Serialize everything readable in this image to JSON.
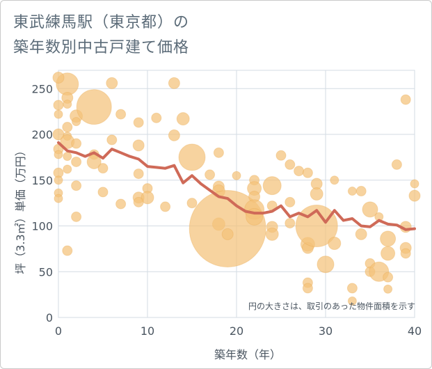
{
  "title": {
    "line1": "東武練馬駅（東京都）の",
    "line2": "築年数別中古戸建て価格"
  },
  "colors": {
    "bubble": "#f4c27a",
    "trend": "#cf6a58",
    "grid": "#d3dbe3",
    "text": "#4a5560"
  },
  "chart_data": {
    "type": "scatter",
    "xlabel": "築年数（年）",
    "ylabel": "坪（3.3㎡）単価（万円）",
    "xlim": [
      0,
      40
    ],
    "ylim": [
      0,
      270
    ],
    "x_ticks": [
      "0",
      "10",
      "20",
      "30",
      "40"
    ],
    "y_ticks": [
      "0",
      "50",
      "100",
      "150",
      "200",
      "250"
    ],
    "grid": true,
    "annotation": "円の大きさは、取引のあった物件面積を示す",
    "bubbles": [
      {
        "x": 1,
        "y": 255,
        "r": 16
      },
      {
        "x": 0,
        "y": 262,
        "r": 8
      },
      {
        "x": 1,
        "y": 240,
        "r": 8
      },
      {
        "x": 1,
        "y": 233,
        "r": 6
      },
      {
        "x": 0,
        "y": 232,
        "r": 7
      },
      {
        "x": 0,
        "y": 222,
        "r": 6
      },
      {
        "x": 2,
        "y": 220,
        "r": 9
      },
      {
        "x": 2,
        "y": 214,
        "r": 6
      },
      {
        "x": 1,
        "y": 208,
        "r": 7
      },
      {
        "x": 0,
        "y": 200,
        "r": 8
      },
      {
        "x": 1,
        "y": 198,
        "r": 6
      },
      {
        "x": 1,
        "y": 192,
        "r": 10
      },
      {
        "x": 2,
        "y": 190,
        "r": 7
      },
      {
        "x": 0,
        "y": 184,
        "r": 7
      },
      {
        "x": 0,
        "y": 178,
        "r": 6
      },
      {
        "x": 1,
        "y": 176,
        "r": 6
      },
      {
        "x": 2,
        "y": 170,
        "r": 7
      },
      {
        "x": 0,
        "y": 158,
        "r": 7
      },
      {
        "x": 0,
        "y": 150,
        "r": 6
      },
      {
        "x": 1,
        "y": 162,
        "r": 6
      },
      {
        "x": 0,
        "y": 136,
        "r": 6
      },
      {
        "x": 0,
        "y": 130,
        "r": 6
      },
      {
        "x": 2,
        "y": 144,
        "r": 7
      },
      {
        "x": 2,
        "y": 110,
        "r": 7
      },
      {
        "x": 1,
        "y": 73,
        "r": 7
      },
      {
        "x": 4,
        "y": 230,
        "r": 25
      },
      {
        "x": 6,
        "y": 256,
        "r": 8
      },
      {
        "x": 7,
        "y": 222,
        "r": 7
      },
      {
        "x": 6,
        "y": 194,
        "r": 7
      },
      {
        "x": 4,
        "y": 178,
        "r": 7
      },
      {
        "x": 4,
        "y": 170,
        "r": 10
      },
      {
        "x": 5,
        "y": 163,
        "r": 7
      },
      {
        "x": 5,
        "y": 137,
        "r": 7
      },
      {
        "x": 7,
        "y": 124,
        "r": 7
      },
      {
        "x": 9,
        "y": 213,
        "r": 7
      },
      {
        "x": 9,
        "y": 188,
        "r": 8
      },
      {
        "x": 9,
        "y": 157,
        "r": 7
      },
      {
        "x": 10,
        "y": 141,
        "r": 7
      },
      {
        "x": 9,
        "y": 131,
        "r": 8
      },
      {
        "x": 10,
        "y": 131,
        "r": 9
      },
      {
        "x": 9,
        "y": 126,
        "r": 7
      },
      {
        "x": 11,
        "y": 218,
        "r": 7
      },
      {
        "x": 13,
        "y": 256,
        "r": 8
      },
      {
        "x": 14,
        "y": 217,
        "r": 9
      },
      {
        "x": 13,
        "y": 199,
        "r": 8
      },
      {
        "x": 12,
        "y": 121,
        "r": 7
      },
      {
        "x": 15,
        "y": 175,
        "r": 19
      },
      {
        "x": 15,
        "y": 125,
        "r": 7
      },
      {
        "x": 17,
        "y": 156,
        "r": 7
      },
      {
        "x": 18,
        "y": 180,
        "r": 7
      },
      {
        "x": 18,
        "y": 143,
        "r": 8
      },
      {
        "x": 18,
        "y": 138,
        "r": 9
      },
      {
        "x": 18,
        "y": 102,
        "r": 9
      },
      {
        "x": 19,
        "y": 97,
        "r": 55
      },
      {
        "x": 19,
        "y": 91,
        "r": 8
      },
      {
        "x": 20,
        "y": 155,
        "r": 6
      },
      {
        "x": 22,
        "y": 150,
        "r": 7
      },
      {
        "x": 22,
        "y": 141,
        "r": 10
      },
      {
        "x": 22,
        "y": 132,
        "r": 8
      },
      {
        "x": 22,
        "y": 118,
        "r": 14
      },
      {
        "x": 22,
        "y": 110,
        "r": 12
      },
      {
        "x": 24,
        "y": 144,
        "r": 13
      },
      {
        "x": 24,
        "y": 122,
        "r": 7
      },
      {
        "x": 24,
        "y": 99,
        "r": 8
      },
      {
        "x": 24,
        "y": 91,
        "r": 9
      },
      {
        "x": 25,
        "y": 177,
        "r": 7
      },
      {
        "x": 26,
        "y": 167,
        "r": 7
      },
      {
        "x": 26,
        "y": 126,
        "r": 7
      },
      {
        "x": 26,
        "y": 103,
        "r": 7
      },
      {
        "x": 27,
        "y": 160,
        "r": 7
      },
      {
        "x": 28,
        "y": 158,
        "r": 7
      },
      {
        "x": 28,
        "y": 80,
        "r": 10
      },
      {
        "x": 28,
        "y": 76,
        "r": 8
      },
      {
        "x": 28,
        "y": 38,
        "r": 7
      },
      {
        "x": 28,
        "y": 32,
        "r": 7
      },
      {
        "x": 29,
        "y": 146,
        "r": 8
      },
      {
        "x": 29,
        "y": 135,
        "r": 9
      },
      {
        "x": 29,
        "y": 100,
        "r": 30
      },
      {
        "x": 30,
        "y": 58,
        "r": 12
      },
      {
        "x": 31,
        "y": 150,
        "r": 6
      },
      {
        "x": 31,
        "y": 81,
        "r": 9
      },
      {
        "x": 33,
        "y": 138,
        "r": 6
      },
      {
        "x": 33,
        "y": 32,
        "r": 7
      },
      {
        "x": 33,
        "y": 18,
        "r": 6
      },
      {
        "x": 34,
        "y": 138,
        "r": 7
      },
      {
        "x": 34,
        "y": 91,
        "r": 8
      },
      {
        "x": 35,
        "y": 118,
        "r": 11
      },
      {
        "x": 35,
        "y": 59,
        "r": 7
      },
      {
        "x": 35,
        "y": 50,
        "r": 7
      },
      {
        "x": 36,
        "y": 110,
        "r": 6
      },
      {
        "x": 36,
        "y": 50,
        "r": 14
      },
      {
        "x": 37,
        "y": 86,
        "r": 11
      },
      {
        "x": 37,
        "y": 70,
        "r": 10
      },
      {
        "x": 37,
        "y": 44,
        "r": 7
      },
      {
        "x": 37,
        "y": 31,
        "r": 6
      },
      {
        "x": 38,
        "y": 167,
        "r": 7
      },
      {
        "x": 39,
        "y": 238,
        "r": 7
      },
      {
        "x": 39,
        "y": 99,
        "r": 8
      },
      {
        "x": 39,
        "y": 76,
        "r": 8
      },
      {
        "x": 39,
        "y": 70,
        "r": 7
      },
      {
        "x": 40,
        "y": 146,
        "r": 6
      },
      {
        "x": 40,
        "y": 133,
        "r": 8
      }
    ],
    "trend": {
      "x": [
        0,
        1,
        2,
        3,
        4,
        5,
        6,
        7,
        8,
        9,
        10,
        11,
        12,
        13,
        14,
        15,
        16,
        17,
        18,
        19,
        20,
        21,
        22,
        23,
        24,
        25,
        26,
        27,
        28,
        29,
        30,
        31,
        32,
        33,
        34,
        35,
        36,
        37,
        38,
        39,
        40
      ],
      "y": [
        191,
        182,
        180,
        176,
        180,
        174,
        184,
        180,
        176,
        173,
        165,
        164,
        163,
        166,
        147,
        155,
        146,
        139,
        132,
        130,
        122,
        116,
        114,
        114,
        116,
        122,
        110,
        114,
        110,
        117,
        104,
        117,
        106,
        108,
        100,
        99,
        106,
        102,
        101,
        96,
        97
      ]
    }
  }
}
